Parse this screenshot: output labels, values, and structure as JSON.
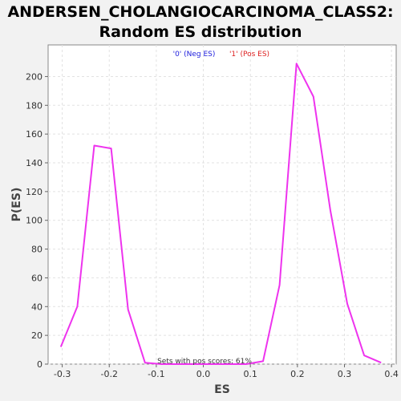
{
  "chart_data": {
    "type": "line",
    "title_line1": "ANDERSEN_CHOLANGIOCARCINOMA_CLASS2:",
    "title_line2": "Random ES distribution",
    "xlabel": "ES",
    "ylabel": "P(ES)",
    "xlim": [
      -0.33,
      0.41
    ],
    "ylim": [
      0,
      222
    ],
    "x_ticks": [
      -0.3,
      -0.2,
      -0.1,
      0.0,
      0.1,
      0.2,
      0.3,
      0.4
    ],
    "x_tick_labels": [
      "-0.3",
      "-0.2",
      "-0.1",
      "0.0",
      "0.1",
      "0.2",
      "0.3",
      "0.4"
    ],
    "y_ticks": [
      0,
      20,
      40,
      60,
      80,
      100,
      120,
      140,
      160,
      180,
      200
    ],
    "y_tick_labels": [
      "0",
      "20",
      "40",
      "60",
      "80",
      "100",
      "120",
      "140",
      "160",
      "180",
      "200"
    ],
    "grid": true,
    "legend": [
      {
        "label": "'0' (Neg ES)",
        "color": "#2020dd"
      },
      {
        "label": "'1' (Pos ES)",
        "color": "#dd2020"
      }
    ],
    "legend_position": "top-center",
    "annotation": "Sets with pos scores: 61%",
    "series": [
      {
        "color": "#ee33ee",
        "x": [
          -0.303,
          -0.268,
          -0.232,
          -0.196,
          -0.16,
          -0.124,
          -0.089,
          -0.053,
          -0.017,
          0.019,
          0.055,
          0.091,
          0.127,
          0.162,
          0.198,
          0.234,
          0.27,
          0.306,
          0.342,
          0.378
        ],
        "y": [
          12,
          40,
          152,
          150,
          38,
          1,
          0,
          0,
          0,
          0,
          0,
          0,
          2,
          55,
          209,
          186,
          107,
          42,
          6,
          1
        ]
      }
    ]
  }
}
